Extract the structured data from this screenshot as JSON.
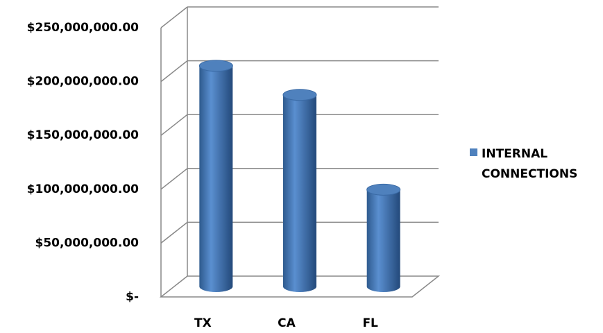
{
  "chart_data": {
    "type": "bar",
    "categories": [
      "TX",
      "CA",
      "FL"
    ],
    "series": [
      {
        "name": "INTERNAL CONNECTIONS",
        "color": "#4f81bd",
        "values": [
          205000000,
          178000000,
          90000000
        ]
      }
    ],
    "ylim": [
      0,
      250000000
    ],
    "yticks": [
      {
        "value": 0,
        "label": "$-"
      },
      {
        "value": 50000000,
        "label": "$50,000,000.00"
      },
      {
        "value": 100000000,
        "label": "$100,000,000.00"
      },
      {
        "value": 150000000,
        "label": "$150,000,000.00"
      },
      {
        "value": 200000000,
        "label": "$200,000,000.00"
      },
      {
        "value": 250000000,
        "label": "$250,000,000.00"
      }
    ],
    "grid": true,
    "legend": "right"
  }
}
